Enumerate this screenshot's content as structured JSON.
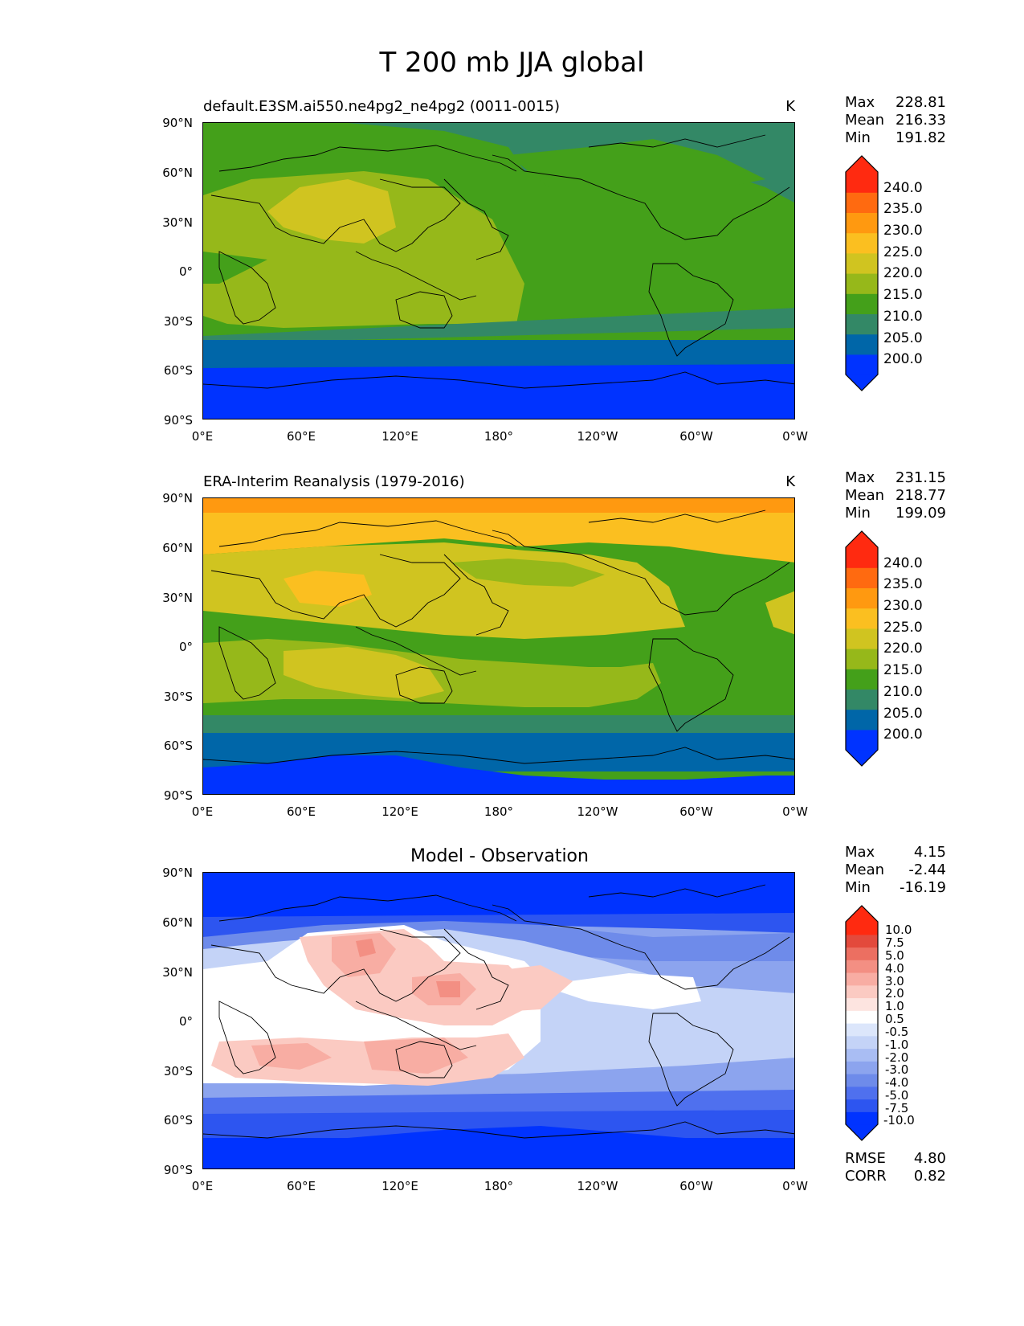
{
  "figure": {
    "title": "T 200 mb JJA global",
    "lat_labels": [
      "90°N",
      "60°N",
      "30°N",
      "0°",
      "30°S",
      "60°S",
      "90°S"
    ],
    "lon_labels": [
      "0°E",
      "60°E",
      "120°E",
      "180°",
      "120°W",
      "60°W",
      "0°W"
    ]
  },
  "colors": {
    "temp_bins": [
      "#0033ff",
      "#0066a8",
      "#338866",
      "#44a01a",
      "#96b81a",
      "#d0c420",
      "#fbbf20",
      "#ff9910",
      "#ff6a10",
      "#ff2a10"
    ],
    "diff_pos": [
      "#ffffff",
      "#fde4e0",
      "#fbcac2",
      "#f8ada3",
      "#f38f83",
      "#ec6f61",
      "#e34a3c",
      "#ff2a10"
    ],
    "diff_neg": [
      "#ffffff",
      "#dce6fb",
      "#c4d3f7",
      "#a9bdf3",
      "#8ca4ee",
      "#6e8bea",
      "#4f70ee",
      "#2d55f0",
      "#0033ff"
    ]
  },
  "panels": [
    {
      "title": "default.E3SM.ai550.ne4pg2_ne4pg2 (0011-0015)",
      "units": "K",
      "stats": {
        "max_label": "Max",
        "max": "228.81",
        "mean_label": "Mean",
        "mean": "216.33",
        "min_label": "Min",
        "min": "191.82"
      },
      "colorbar_ticks": [
        "240.0",
        "235.0",
        "230.0",
        "225.0",
        "220.0",
        "215.0",
        "210.0",
        "205.0",
        "200.0"
      ]
    },
    {
      "title": "ERA-Interim Reanalysis (1979-2016)",
      "units": "K",
      "stats": {
        "max_label": "Max",
        "max": "231.15",
        "mean_label": "Mean",
        "mean": "218.77",
        "min_label": "Min",
        "min": "199.09"
      },
      "colorbar_ticks": [
        "240.0",
        "235.0",
        "230.0",
        "225.0",
        "220.0",
        "215.0",
        "210.0",
        "205.0",
        "200.0"
      ]
    },
    {
      "title": "Model - Observation",
      "units": "",
      "stats": {
        "max_label": "Max",
        "max": "4.15",
        "mean_label": "Mean",
        "mean": "-2.44",
        "min_label": "Min",
        "min": "-16.19"
      },
      "colorbar_ticks": [
        "10.0",
        "7.5",
        "5.0",
        "4.0",
        "3.0",
        "2.0",
        "1.0",
        "0.5",
        "-0.5",
        "-1.0",
        "-2.0",
        "-3.0",
        "-4.0",
        "-5.0",
        "-7.5",
        "-10.0"
      ],
      "metrics": {
        "rmse_label": "RMSE",
        "rmse": "4.80",
        "corr_label": "CORR",
        "corr": "0.82"
      }
    }
  ]
}
